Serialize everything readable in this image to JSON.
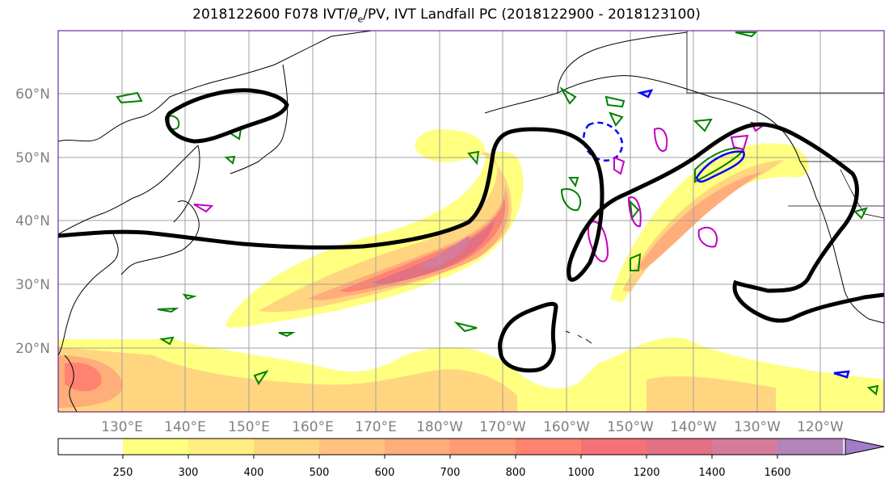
{
  "title_main": "2018122600 F078 IVT/",
  "title_theta": "θ",
  "title_sub": "e",
  "title_rest": "/PV, IVT Landfall PC (2018122900 - 2018123100)",
  "lat_labels": [
    "60°N",
    "50°N",
    "40°N",
    "30°N",
    "20°N"
  ],
  "lon_labels": [
    "130°E",
    "140°E",
    "150°E",
    "160°E",
    "170°E",
    "180°W",
    "170°W",
    "160°W",
    "150°W",
    "140°W",
    "130°W",
    "120°W"
  ],
  "colorbar": {
    "labels": [
      "250",
      "300",
      "400",
      "500",
      "600",
      "700",
      "800",
      "1000",
      "1200",
      "1400",
      "1600"
    ],
    "colors": [
      "#ffff80",
      "#ffee80",
      "#ffd57f",
      "#ffc27f",
      "#ffad7a",
      "#ff9a73",
      "#ff8370",
      "#f47277",
      "#e27183",
      "#d67c9a",
      "#b483b9",
      "#a27cc8"
    ]
  },
  "colors": {
    "frame": "#550088",
    "coast": "#000000",
    "jet_contour": "#000000",
    "theta_e": "#008000",
    "pv_positive": "#0000ff",
    "pv_magenta": "#c000c0"
  }
}
